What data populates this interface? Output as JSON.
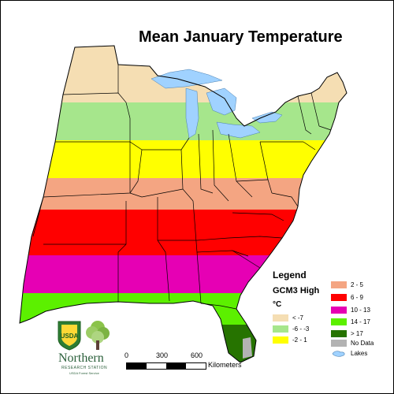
{
  "map": {
    "title": "Mean January Temperature",
    "colors": {
      "band_lt_-7": "#f5deb3",
      "band_-6_-3": "#a6e68c",
      "band_-2_1": "#ffff00",
      "band_2_5": "#f4a582",
      "band_6_9": "#ff0000",
      "band_10_13": "#e600b4",
      "band_14_17": "#5cf000",
      "band_gt_17": "#267300",
      "no_data": "#b3b3b3",
      "lakes": "#a0d2ff",
      "boundaries": "#000000"
    }
  },
  "legend": {
    "title": "Legend",
    "scenario": "GCM3 High",
    "unit": "°C",
    "items": [
      {
        "label": "< -7",
        "color": "#f5deb3"
      },
      {
        "label": "-6 - -3",
        "color": "#a6e68c"
      },
      {
        "label": "-2 - 1",
        "color": "#ffff00"
      },
      {
        "label": "2 - 5",
        "color": "#f4a582"
      },
      {
        "label": "6 - 9",
        "color": "#ff0000"
      },
      {
        "label": "10 - 13",
        "color": "#e600b4"
      },
      {
        "label": "14 - 17",
        "color": "#5cf000"
      },
      {
        "label": "> 17",
        "color": "#267300"
      },
      {
        "label": "No Data",
        "color": "#b3b3b3"
      },
      {
        "label": "Lakes",
        "color": "#a0d2ff"
      }
    ]
  },
  "scale": {
    "ticks": [
      "0",
      "300",
      "600"
    ],
    "unit": "Kilometers"
  },
  "logo": {
    "name": "Northern",
    "subtitle": "RESEARCH STATION",
    "agency": "USDA Forest Service",
    "shield_text": "USDA"
  }
}
